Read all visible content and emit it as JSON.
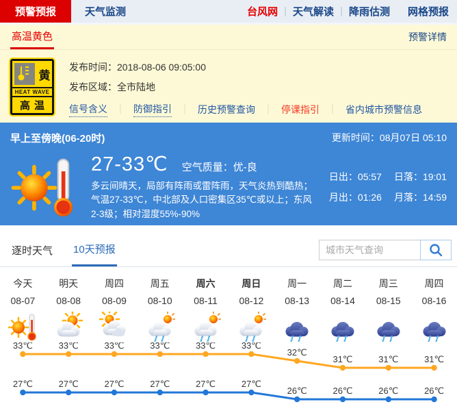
{
  "nav": {
    "tabs": [
      {
        "label": "预警预报",
        "active": true
      },
      {
        "label": "天气监测",
        "active": false
      }
    ],
    "links": [
      {
        "label": "台风网",
        "highlight": true
      },
      {
        "label": "天气解读",
        "sep": true
      },
      {
        "label": "降雨估测",
        "sep": true
      },
      {
        "label": "网格预报",
        "gap": true
      }
    ]
  },
  "alert_bar": {
    "title": "高温黄色",
    "detail_link": "预警详情"
  },
  "warning": {
    "sign": {
      "badge": "黄",
      "subtitle": "HEAT WAVE",
      "name": "高温"
    },
    "issue_time_label": "发布时间：",
    "issue_time": "2018-08-06 09:05:00",
    "area_label": "发布区域：",
    "area": "全市陆地",
    "links": [
      {
        "label": "信号含义",
        "underline": "dotted"
      },
      {
        "label": "防御指引",
        "underline": "dotted",
        "sep": true
      },
      {
        "label": "历史预警查询",
        "sep": true
      },
      {
        "label": "停课指引",
        "highlight": true,
        "sep": true
      },
      {
        "label": "省内城市预警信息",
        "sep": true
      }
    ]
  },
  "current": {
    "period": "早上至傍晚(06-20时)",
    "update_label": "更新时间：",
    "update_time": "08月07日 05:10",
    "temp_range": "27-33℃",
    "air_quality_label": "空气质量：",
    "air_quality": "优-良",
    "description": "多云间晴天，局部有阵雨或雷阵雨，天气炎热到酷热；气温27-33℃，中北部及人口密集区35℃或以上；东风2-3级；相对湿度55%-90%",
    "sun_moon": [
      {
        "label": "日出",
        "value": "05:57"
      },
      {
        "label": "日落",
        "value": "19:01"
      },
      {
        "label": "月出",
        "value": "01:26"
      },
      {
        "label": "月落",
        "value": "14:59"
      }
    ]
  },
  "forecast_tabs": {
    "tabs": [
      {
        "label": "逐时天气",
        "active": false
      },
      {
        "label": "10天预报",
        "active": true
      }
    ],
    "search_placeholder": "城市天气查询"
  },
  "chart_data": {
    "type": "line",
    "categories": [
      "今天",
      "明天",
      "周四",
      "周五",
      "周六",
      "周日",
      "周一",
      "周二",
      "周三",
      "周四"
    ],
    "dates": [
      "08-07",
      "08-08",
      "08-09",
      "08-10",
      "08-11",
      "08-12",
      "08-13",
      "08-14",
      "08-15",
      "08-16"
    ],
    "bold": [
      false,
      false,
      false,
      false,
      true,
      true,
      false,
      false,
      false,
      false
    ],
    "icons": [
      "hot",
      "partly",
      "cloudy",
      "shower",
      "shower",
      "shower",
      "rain",
      "rain",
      "rain",
      "rain"
    ],
    "unit": "℃",
    "series": [
      {
        "name": "high",
        "values": [
          33,
          33,
          33,
          33,
          33,
          33,
          32,
          31,
          31,
          31
        ],
        "color": "#ffa722"
      },
      {
        "name": "low",
        "values": [
          27,
          27,
          27,
          27,
          27,
          27,
          26,
          26,
          26,
          26
        ],
        "color": "#2277d8"
      }
    ],
    "legend": "none",
    "grid": false
  },
  "colors": {
    "accent_red": "#dc0000",
    "navy_link": "#1a4788",
    "panel_blue": "#3e86d6",
    "alert_yellow_bg": "#fdf9d6",
    "high_line": "#ffa722",
    "low_line": "#2277d8"
  }
}
